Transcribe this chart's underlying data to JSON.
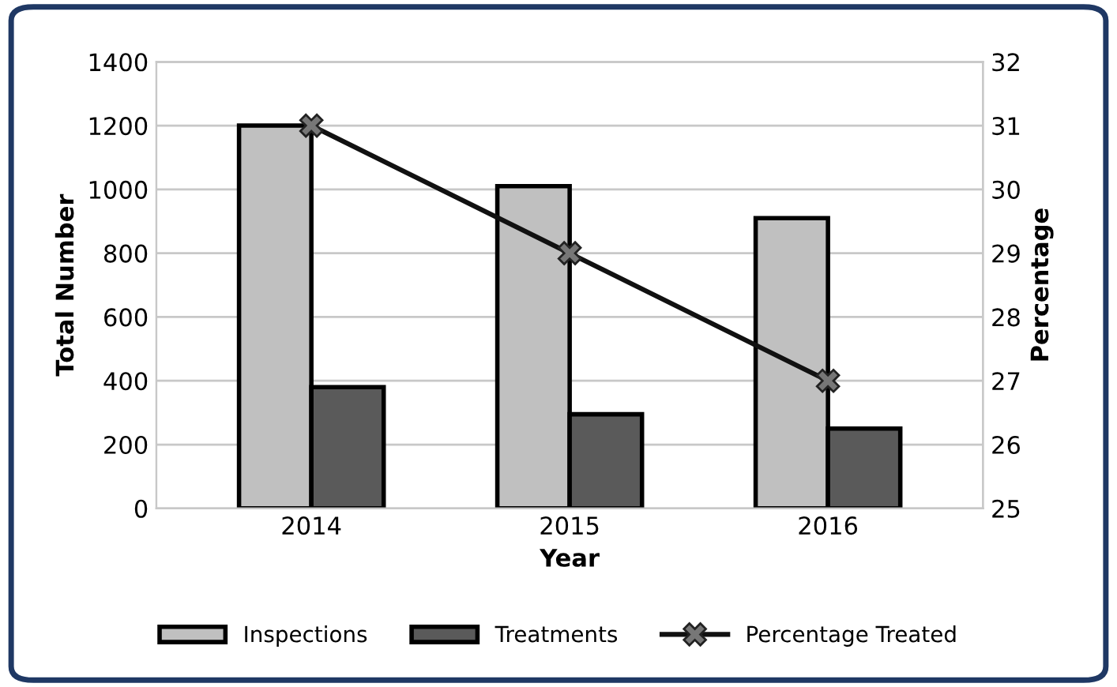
{
  "chart_data": {
    "type": "bar",
    "xlabel": "Year",
    "ylabel": "Total Number",
    "y2label": "Percentage",
    "categories": [
      "2014",
      "2015",
      "2016"
    ],
    "series": [
      {
        "name": "Inspections",
        "color": "#c0c0c0",
        "values": [
          1200,
          1010,
          910
        ]
      },
      {
        "name": "Treatments",
        "color": "#5a5a5a",
        "values": [
          380,
          295,
          250
        ]
      },
      {
        "name": "Percentage Treated",
        "type": "line",
        "axis": "y2",
        "color": "#111111",
        "marker": "cross",
        "values": [
          31,
          29,
          27
        ]
      }
    ],
    "ylim": [
      0,
      1400
    ],
    "yticks": [
      0,
      200,
      400,
      600,
      800,
      1000,
      1200,
      1400
    ],
    "y2lim": [
      25,
      32
    ],
    "y2ticks": [
      25,
      26,
      27,
      28,
      29,
      30,
      31,
      32
    ],
    "grid": "y",
    "legend": "bottom"
  }
}
